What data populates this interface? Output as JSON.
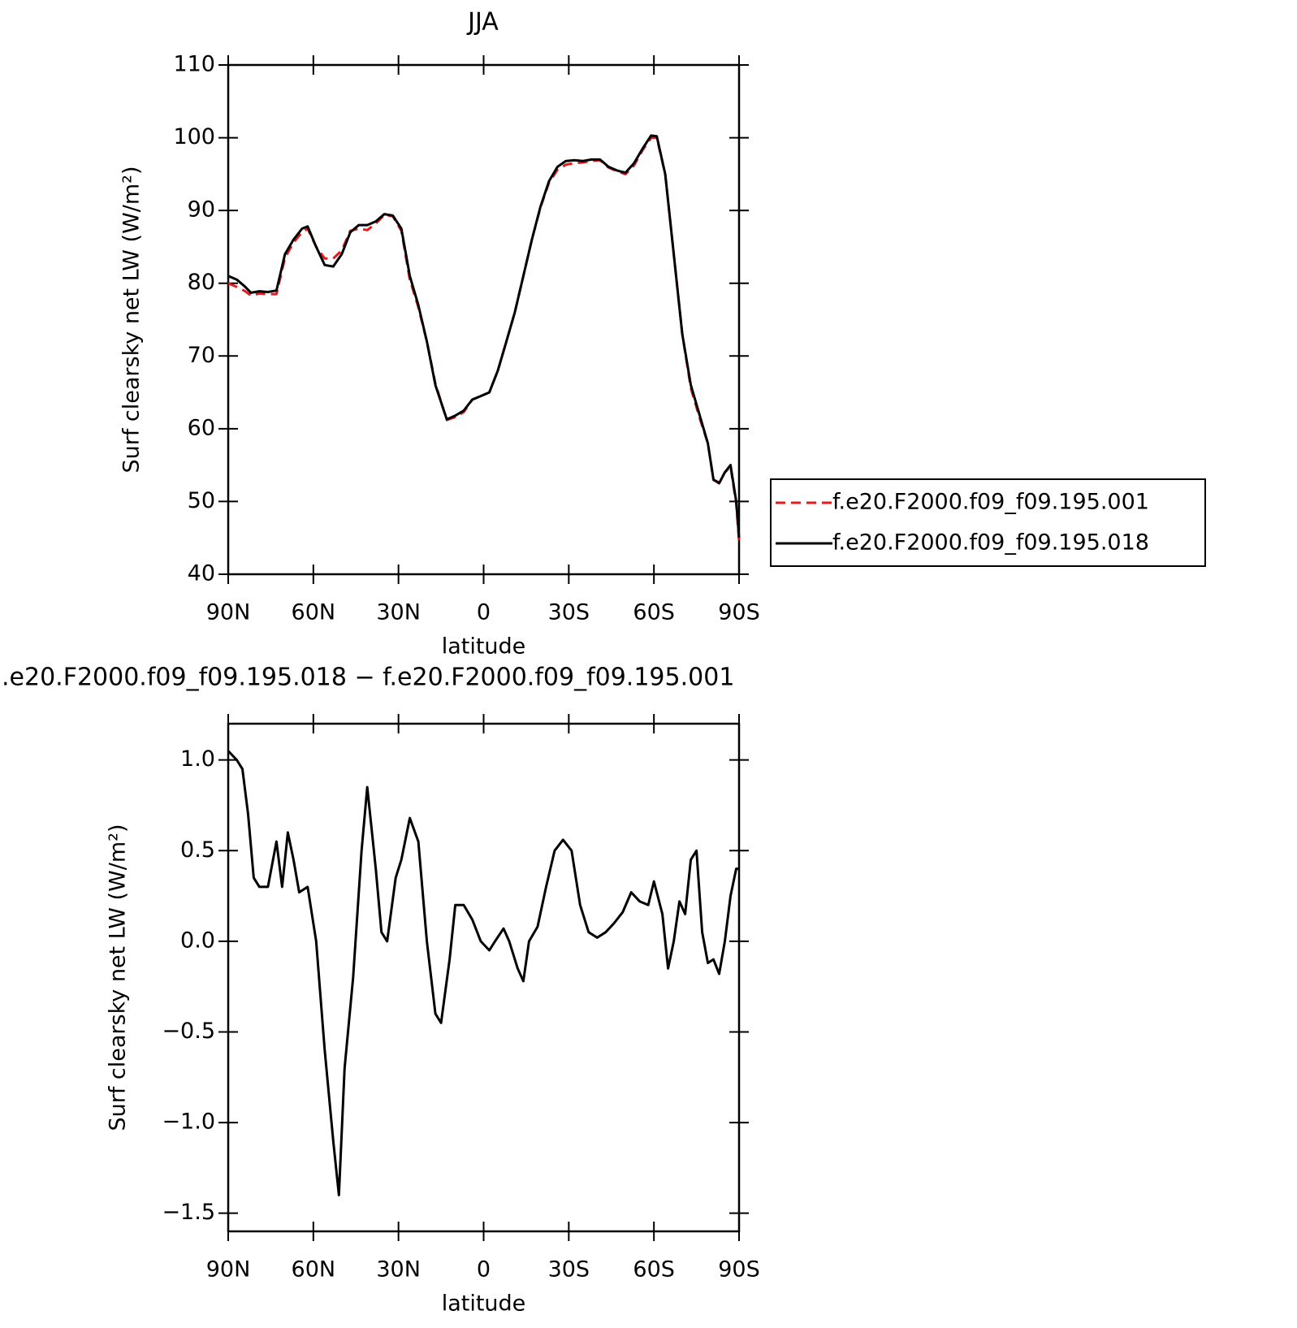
{
  "chart_data": [
    {
      "type": "line",
      "title": "JJA",
      "xlabel": "latitude",
      "ylabel": "Surf clearsky net LW (W/m²)",
      "x": [
        90,
        87,
        84,
        82,
        79,
        76,
        73,
        70,
        67,
        64,
        62,
        59,
        56,
        53,
        50,
        47,
        44,
        41,
        38,
        35,
        32,
        29,
        26,
        23,
        20,
        17,
        13,
        10,
        7,
        4,
        1,
        -2,
        -5,
        -8,
        -11,
        -14,
        -17,
        -20,
        -23,
        -26,
        -29,
        -32,
        -35,
        -38,
        -41,
        -44,
        -47,
        -50,
        -53,
        -56,
        -59,
        -61,
        -64,
        -67,
        -70,
        -73,
        -76,
        -79,
        -81,
        -83,
        -85,
        -87,
        -89,
        -90
      ],
      "series": [
        {
          "name": "f.e20.F2000.f09_f09.195.001",
          "color": "#e41a1c",
          "linestyle": "dashed",
          "values": [
            80.0,
            79.5,
            78.9,
            78.3,
            78.6,
            78.5,
            78.5,
            83.5,
            85.6,
            87.0,
            87.5,
            85,
            83.4,
            83.4,
            84.5,
            87.2,
            87.5,
            87.3,
            88.2,
            89.4,
            89.2,
            87.2,
            80.5,
            76.7,
            72,
            66.2,
            61.2,
            61.6,
            62.3,
            64,
            64.5,
            65,
            68,
            72,
            76,
            81,
            86,
            90.4,
            93.8,
            95.6,
            96.3,
            96.5,
            96.6,
            96.8,
            96.9,
            95.9,
            95.4,
            95,
            96.2,
            98.3,
            100,
            100,
            95,
            84,
            73,
            65.6,
            61.6,
            58,
            53,
            52.6,
            54,
            54.8,
            49.7,
            44.6
          ]
        },
        {
          "name": "f.e20.F2000.f09_f09.195.018",
          "color": "#000000",
          "linestyle": "solid",
          "values": [
            81.0,
            80.5,
            79.5,
            78.7,
            78.9,
            78.8,
            79.0,
            84,
            86,
            87.5,
            87.8,
            85,
            82.5,
            82.3,
            84,
            87,
            88,
            88,
            88.5,
            89.5,
            89.3,
            87.5,
            81,
            77,
            72,
            66,
            61.3,
            61.8,
            62.5,
            64,
            64.5,
            65,
            68,
            72,
            76,
            81,
            86,
            90.5,
            94,
            96,
            96.8,
            96.9,
            96.8,
            97,
            97,
            96,
            95.5,
            95.2,
            96.5,
            98.5,
            100.3,
            100.2,
            95,
            84,
            73,
            66,
            62,
            58,
            53,
            52.5,
            54,
            55,
            50,
            45
          ]
        }
      ],
      "xlim": [
        90,
        -90
      ],
      "xticks": [
        {
          "value": 90,
          "label": "90N"
        },
        {
          "value": 60,
          "label": "60N"
        },
        {
          "value": 30,
          "label": "30N"
        },
        0,
        {
          "value": -30,
          "label": "30S"
        },
        {
          "value": -60,
          "label": "60S"
        },
        {
          "value": -90,
          "label": "90S"
        }
      ],
      "ylim": [
        40,
        110
      ],
      "yticks": [
        40,
        50,
        60,
        70,
        80,
        90,
        100,
        110
      ],
      "legend": "right"
    },
    {
      "type": "line",
      "title": ".e20.F2000.f09_f09.195.018 − f.e20.F2000.f09_f09.195.001",
      "xlabel": "latitude",
      "ylabel": "Surf clearsky net LW (W/m²)",
      "x": [
        90,
        87,
        85,
        83,
        81,
        79,
        76,
        73,
        71,
        69,
        67,
        65,
        62,
        59,
        56,
        53,
        51,
        49,
        46,
        43,
        41,
        38,
        36,
        34,
        31,
        29,
        26,
        23,
        20,
        17,
        15,
        12,
        10,
        7,
        4,
        1,
        -2,
        -4,
        -7,
        -9,
        -12,
        -14,
        -16,
        -19,
        -22,
        -25,
        -28,
        -31,
        -34,
        -37,
        -40,
        -43,
        -46,
        -49,
        -52,
        -55,
        -58,
        -60,
        -63,
        -65,
        -67,
        -69,
        -71,
        -73,
        -75,
        -77,
        -79,
        -81,
        -83,
        -85,
        -87,
        -89,
        -90
      ],
      "series": [
        {
          "color": "#000000",
          "linestyle": "solid",
          "values": [
            1.05,
            1.0,
            0.95,
            0.7,
            0.35,
            0.3,
            0.3,
            0.55,
            0.3,
            0.6,
            0.45,
            0.27,
            0.3,
            0.0,
            -0.6,
            -1.1,
            -1.4,
            -0.7,
            -0.2,
            0.5,
            0.85,
            0.4,
            0.05,
            0.0,
            0.35,
            0.45,
            0.68,
            0.55,
            0.0,
            -0.4,
            -0.45,
            -0.1,
            0.2,
            0.2,
            0.12,
            0.0,
            -0.05,
            0.0,
            0.07,
            0.0,
            -0.15,
            -0.22,
            0.0,
            0.08,
            0.3,
            0.5,
            0.56,
            0.5,
            0.2,
            0.05,
            0.02,
            0.05,
            0.1,
            0.16,
            0.27,
            0.22,
            0.2,
            0.33,
            0.15,
            -0.15,
            0.0,
            0.22,
            0.15,
            0.45,
            0.5,
            0.05,
            -0.12,
            -0.1,
            -0.18,
            0.0,
            0.25,
            0.4,
            0.4
          ]
        }
      ],
      "xlim": [
        90,
        -90
      ],
      "xticks": [
        {
          "value": 90,
          "label": "90N"
        },
        {
          "value": 60,
          "label": "60N"
        },
        {
          "value": 30,
          "label": "30N"
        },
        0,
        {
          "value": -30,
          "label": "30S"
        },
        {
          "value": -60,
          "label": "60S"
        },
        {
          "value": -90,
          "label": "90S"
        }
      ],
      "ylim": [
        -1.6,
        1.2
      ],
      "yticks": [
        {
          "value": -1.5,
          "label": "−1.5"
        },
        {
          "value": -1.0,
          "label": "−1.0"
        },
        {
          "value": -0.5,
          "label": "−0.5"
        },
        {
          "value": 0,
          "label": "0.0"
        },
        0.5,
        {
          "value": 1.0,
          "label": "1.0"
        }
      ]
    }
  ]
}
